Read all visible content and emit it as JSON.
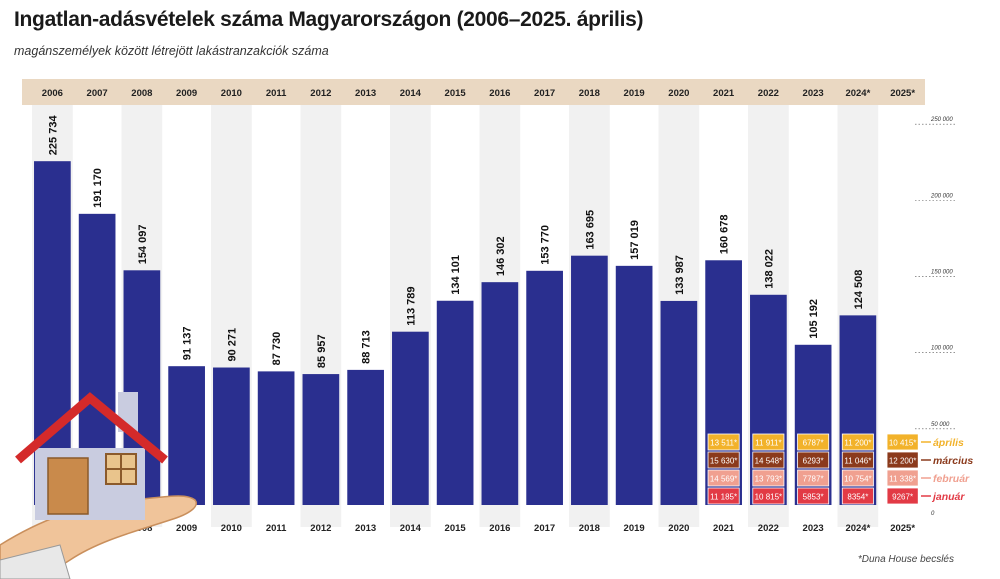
{
  "title": "Ingatlan-adásvételek száma Magyarországon (2006–2025. április)",
  "subtitle": "magánszemélyek között létrejött lakástranzakciók száma",
  "footnote": "*Duna House becslés",
  "colors": {
    "bar": "#2a2f8f",
    "header_band": "#ead8c2",
    "column_shade": "#f1f1f1",
    "grid": "#555555",
    "januar": "#e23a45",
    "februar": "#f0a090",
    "marcius": "#8b3a1c",
    "aprilis": "#f2b22a"
  },
  "chart_data": {
    "type": "bar",
    "title": "Ingatlan-adásvételek száma Magyarországon (2006–2025. április)",
    "subtitle": "magánszemélyek között létrejött lakástranzakciók száma",
    "categories": [
      "2006",
      "2007",
      "2008",
      "2009",
      "2010",
      "2011",
      "2012",
      "2013",
      "2014",
      "2015",
      "2016",
      "2017",
      "2018",
      "2019",
      "2020",
      "2021",
      "2022",
      "2023",
      "2024*",
      "2025*"
    ],
    "values": [
      225734,
      191170,
      154097,
      91137,
      90271,
      87730,
      85957,
      88713,
      113789,
      134101,
      146302,
      153770,
      163695,
      157019,
      133987,
      160678,
      138022,
      105192,
      124508,
      null
    ],
    "value_labels": [
      "225 734",
      "191 170",
      "154 097",
      "91 137",
      "90 271",
      "87 730",
      "85 957",
      "88 713",
      "113 789",
      "134 101",
      "146 302",
      "153 770",
      "163 695",
      "157 019",
      "133 987",
      "160 678",
      "138 022",
      "105 192",
      "124 508",
      ""
    ],
    "yticks": [
      0,
      50000,
      100000,
      150000,
      200000,
      250000
    ],
    "ytick_labels": [
      "0",
      "50 000",
      "100 000",
      "150 000",
      "200 000",
      "250 000"
    ],
    "ylim": [
      0,
      260000
    ],
    "monthly_series": [
      {
        "name": "január",
        "color": "#e23a45",
        "values": {
          "2021": 11185,
          "2022": 10815,
          "2023": 5853,
          "2024*": 8354,
          "2025*": 9267
        },
        "labels": {
          "2021": "11 185*",
          "2022": "10 815*",
          "2023": "5853*",
          "2024*": "8354*",
          "2025*": "9267*"
        }
      },
      {
        "name": "február",
        "color": "#f0a090",
        "values": {
          "2021": 14569,
          "2022": 13793,
          "2023": 7787,
          "2024*": 10754,
          "2025*": 11338
        },
        "labels": {
          "2021": "14 569*",
          "2022": "13 793*",
          "2023": "7787*",
          "2024*": "10 754*",
          "2025*": "11 338*"
        }
      },
      {
        "name": "március",
        "color": "#8b3a1c",
        "values": {
          "2021": 15630,
          "2022": 14548,
          "2023": 6293,
          "2024*": 11046,
          "2025*": 12200
        },
        "labels": {
          "2021": "15 630*",
          "2022": "14 548*",
          "2023": "6293*",
          "2024*": "11 046*",
          "2025*": "12 200*"
        }
      },
      {
        "name": "április",
        "color": "#f2b22a",
        "values": {
          "2021": 13511,
          "2022": 11911,
          "2023": 6787,
          "2024*": 11200,
          "2025*": 10415
        },
        "labels": {
          "2021": "13 511*",
          "2022": "11 911*",
          "2023": "6787*",
          "2024*": "11 200*",
          "2025*": "10 415*"
        }
      }
    ],
    "legend_placement": "right, beside 2025* column",
    "grid": true
  }
}
